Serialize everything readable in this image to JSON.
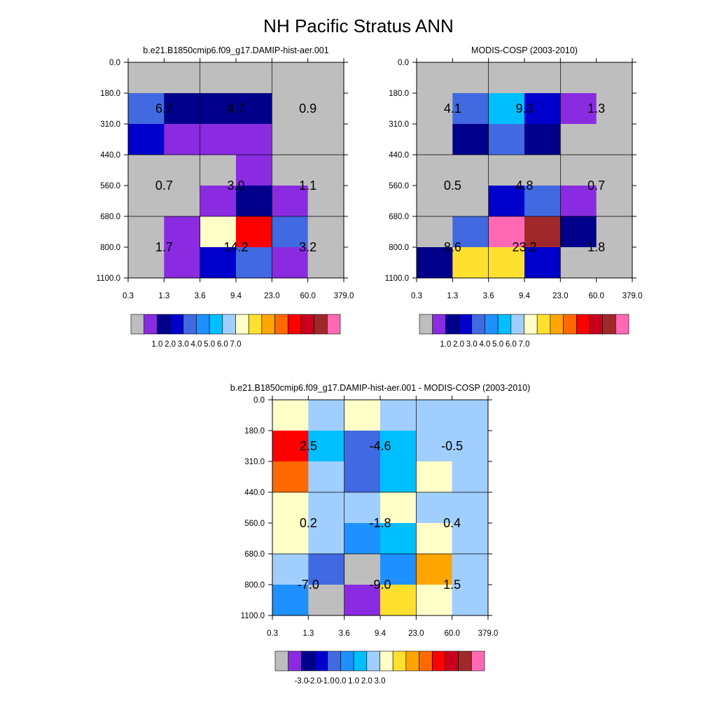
{
  "title": "NH Pacific Stratus ANN",
  "x_ticks": [
    "0.3",
    "1.3",
    "3.6",
    "9.4",
    "23.0",
    "60.0",
    "379.0"
  ],
  "y_ticks": [
    "0.0",
    "180.0",
    "310.0",
    "440.0",
    "560.0",
    "680.0",
    "800.0",
    "1100.0"
  ],
  "chart_data": [
    {
      "type": "heatmap",
      "title": "b.e21.B1850cmip6.f09_g17.DAMIP-hist-aer.001",
      "cells": [
        [
          "c0",
          "c0",
          "c0",
          "c0",
          "c0",
          "c0"
        ],
        [
          "c4",
          "c2",
          "c2",
          "c2",
          "c0",
          "c0"
        ],
        [
          "c3",
          "c1",
          "c1",
          "c1",
          "c0",
          "c0"
        ],
        [
          "c0",
          "c0",
          "c0",
          "c1",
          "c0",
          "c0"
        ],
        [
          "c0",
          "c0",
          "c1",
          "c2",
          "c1",
          "c0"
        ],
        [
          "c0",
          "c1",
          "c8",
          "c12",
          "c4",
          "c0"
        ],
        [
          "c0",
          "c1",
          "c3",
          "c4",
          "c1",
          "c0"
        ]
      ],
      "labels": [
        {
          "text": "6.7",
          "col": 1,
          "row": 1.5
        },
        {
          "text": "4.7",
          "col": 3,
          "row": 1.5
        },
        {
          "text": "0.9",
          "col": 5,
          "row": 1.5
        },
        {
          "text": "0.7",
          "col": 1,
          "row": 4
        },
        {
          "text": "3.0",
          "col": 3,
          "row": 4
        },
        {
          "text": "1.1",
          "col": 5,
          "row": 4
        },
        {
          "text": "1.7",
          "col": 1,
          "row": 6
        },
        {
          "text": "14.2",
          "col": 3,
          "row": 6
        },
        {
          "text": "3.2",
          "col": 5,
          "row": 6
        }
      ],
      "colorbar": {
        "colors": [
          "#BEBEBE",
          "#8A2BE2",
          "#00008B",
          "#0000CD",
          "#4169E1",
          "#1E90FF",
          "#00BFFF",
          "#A0CFFF",
          "#FFFFC8",
          "#FFE02E",
          "#FFA500",
          "#FF6A00",
          "#FF0000",
          "#C8001E",
          "#A0282A",
          "#FF69B4"
        ],
        "labels": [
          "1.0",
          "2.0",
          "3.0",
          "4.0",
          "5.0",
          "6.0",
          "7.0"
        ]
      }
    },
    {
      "type": "heatmap",
      "title": "MODIS-COSP (2003-2010)",
      "cells": [
        [
          "c0",
          "c0",
          "c0",
          "c0",
          "c0",
          "c0"
        ],
        [
          "c0",
          "c4",
          "c6",
          "c3",
          "c1",
          "c0"
        ],
        [
          "c0",
          "c2",
          "c4",
          "c2",
          "c0",
          "c0"
        ],
        [
          "c0",
          "c0",
          "c0",
          "c0",
          "c0",
          "c0"
        ],
        [
          "c0",
          "c0",
          "c3",
          "c4",
          "c1",
          "c0"
        ],
        [
          "c0",
          "c4",
          "c15",
          "c14",
          "c2",
          "c0"
        ],
        [
          "c2",
          "c9",
          "c9",
          "c3",
          "c0",
          "c0"
        ]
      ],
      "labels": [
        {
          "text": "4.1",
          "col": 1,
          "row": 1.5
        },
        {
          "text": "9.3",
          "col": 3,
          "row": 1.5
        },
        {
          "text": "1.3",
          "col": 5,
          "row": 1.5
        },
        {
          "text": "0.5",
          "col": 1,
          "row": 4
        },
        {
          "text": "4.8",
          "col": 3,
          "row": 4
        },
        {
          "text": "0.7",
          "col": 5,
          "row": 4
        },
        {
          "text": "8.6",
          "col": 1,
          "row": 6
        },
        {
          "text": "23.2",
          "col": 3,
          "row": 6
        },
        {
          "text": "1.8",
          "col": 5,
          "row": 6
        }
      ],
      "colorbar": {
        "colors": [
          "#BEBEBE",
          "#8A2BE2",
          "#00008B",
          "#0000CD",
          "#4169E1",
          "#1E90FF",
          "#00BFFF",
          "#A0CFFF",
          "#FFFFC8",
          "#FFE02E",
          "#FFA500",
          "#FF6A00",
          "#FF0000",
          "#C8001E",
          "#A0282A",
          "#FF69B4"
        ],
        "labels": [
          "1.0",
          "2.0",
          "3.0",
          "4.0",
          "5.0",
          "6.0",
          "7.0"
        ]
      }
    },
    {
      "type": "heatmap",
      "title": "b.e21.B1850cmip6.f09_g17.DAMIP-hist-aer.001 - MODIS-COSP (2003-2010)",
      "cells": [
        [
          "c8",
          "c7",
          "c8",
          "c7",
          "c7",
          "c7"
        ],
        [
          "c12",
          "c6",
          "c4",
          "c6",
          "c7",
          "c7"
        ],
        [
          "c11",
          "c7",
          "c4",
          "c6",
          "c8",
          "c7"
        ],
        [
          "c8",
          "c7",
          "c7",
          "c8",
          "c7",
          "c7"
        ],
        [
          "c8",
          "c7",
          "c5",
          "c6",
          "c8",
          "c7"
        ],
        [
          "c7",
          "c4",
          "c0",
          "c5",
          "c10",
          "c7"
        ],
        [
          "c5",
          "c0",
          "c1",
          "c9",
          "c8",
          "c7"
        ]
      ],
      "labels": [
        {
          "text": "2.5",
          "col": 1,
          "row": 1.5
        },
        {
          "text": "-4.6",
          "col": 3,
          "row": 1.5
        },
        {
          "text": "-0.5",
          "col": 5,
          "row": 1.5
        },
        {
          "text": "0.2",
          "col": 1,
          "row": 4
        },
        {
          "text": "-1.8",
          "col": 3,
          "row": 4
        },
        {
          "text": "0.4",
          "col": 5,
          "row": 4
        },
        {
          "text": "-7.0",
          "col": 1,
          "row": 6
        },
        {
          "text": "-9.0",
          "col": 3,
          "row": 6
        },
        {
          "text": "1.5",
          "col": 5,
          "row": 6
        }
      ],
      "colorbar": {
        "colors": [
          "#BEBEBE",
          "#8A2BE2",
          "#00008B",
          "#0000CD",
          "#4169E1",
          "#1E90FF",
          "#00BFFF",
          "#A0CFFF",
          "#FFFFC8",
          "#FFE02E",
          "#FFA500",
          "#FF6A00",
          "#FF0000",
          "#C8001E",
          "#A0282A",
          "#FF69B4"
        ],
        "labels": [
          "-3.0",
          "-2.0",
          "-1.0",
          "0.0",
          "1.0",
          "2.0",
          "3.0"
        ]
      }
    }
  ]
}
